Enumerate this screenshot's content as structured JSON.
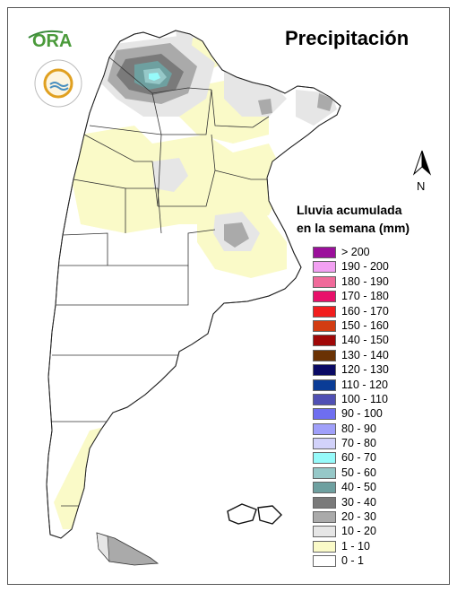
{
  "title": "Precipitación",
  "legend": {
    "title_line1": "Lluvia acumulada",
    "title_line2": "en la semana (mm)",
    "items": [
      {
        "label": "> 200",
        "color": "#9b0f9b"
      },
      {
        "label": "190 - 200",
        "color": "#f2a0f2"
      },
      {
        "label": "180 - 190",
        "color": "#f06a9a"
      },
      {
        "label": "170 - 180",
        "color": "#e8106a"
      },
      {
        "label": "160 - 170",
        "color": "#f21e1e"
      },
      {
        "label": "150 - 160",
        "color": "#d23c12"
      },
      {
        "label": "140 - 150",
        "color": "#a00808"
      },
      {
        "label": "130 - 140",
        "color": "#6a3204"
      },
      {
        "label": "120 - 130",
        "color": "#0a0a64"
      },
      {
        "label": "110 - 120",
        "color": "#0a3c96"
      },
      {
        "label": "100 - 110",
        "color": "#5050b4"
      },
      {
        "label": "90 - 100",
        "color": "#6e6ef0"
      },
      {
        "label": "80 - 90",
        "color": "#a0a0fa"
      },
      {
        "label": "70 - 80",
        "color": "#d2d2fa"
      },
      {
        "label": "60 - 70",
        "color": "#96fafa"
      },
      {
        "label": "50 - 60",
        "color": "#96c8c8"
      },
      {
        "label": "40 - 50",
        "color": "#6ea0a0"
      },
      {
        "label": "30 - 40",
        "color": "#7a7a7a"
      },
      {
        "label": "20 - 30",
        "color": "#aaaaaa"
      },
      {
        "label": "10 - 20",
        "color": "#e6e6e6"
      },
      {
        "label": "1 - 10",
        "color": "#fafac8"
      },
      {
        "label": "0 - 1",
        "color": "#ffffff"
      }
    ]
  },
  "north_label": "N",
  "logos": {
    "ora": "ORA",
    "smn_ring": "SERVICIO METEOROLOGICO NACIONAL · ARGENTINA"
  }
}
